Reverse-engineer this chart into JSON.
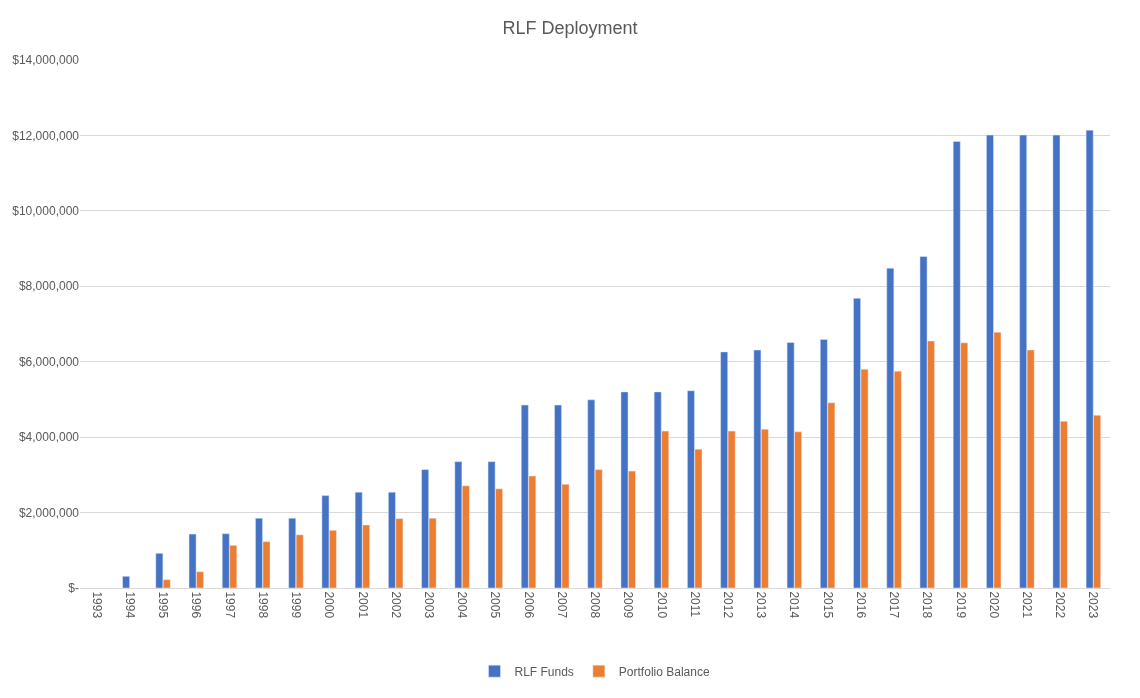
{
  "chart_data": {
    "type": "bar",
    "title": "RLF Deployment",
    "categories": [
      "1993",
      "1994",
      "1995",
      "1996",
      "1997",
      "1998",
      "1999",
      "2000",
      "2001",
      "2002",
      "2003",
      "2004",
      "2005",
      "2006",
      "2007",
      "2008",
      "2009",
      "2010",
      "2011",
      "2012",
      "2013",
      "2014",
      "2015",
      "2016",
      "2017",
      "2018",
      "2019",
      "2020",
      "2021",
      "2022",
      "2023"
    ],
    "series": [
      {
        "name": "RLF Funds",
        "color": "#4472c4",
        "values": [
          null,
          310000,
          920000,
          1430000,
          1440000,
          1850000,
          1850000,
          2450000,
          2540000,
          2540000,
          3140000,
          3350000,
          3350000,
          4850000,
          4850000,
          4990000,
          5200000,
          5200000,
          5230000,
          6260000,
          6310000,
          6510000,
          6590000,
          7680000,
          8480000,
          8790000,
          11840000,
          12010000,
          12010000,
          12010000,
          12140000
        ]
      },
      {
        "name": "Portfolio Balance",
        "color": "#ed7d31",
        "values": [
          null,
          null,
          220000,
          430000,
          1130000,
          1230000,
          1410000,
          1530000,
          1670000,
          1840000,
          1850000,
          2710000,
          2630000,
          2970000,
          2750000,
          3140000,
          3100000,
          4160000,
          3680000,
          4160000,
          4210000,
          4140000,
          4910000,
          5800000,
          5750000,
          6550000,
          6500000,
          6780000,
          6310000,
          4420000,
          4580000
        ]
      }
    ],
    "ylim": [
      0,
      14000000
    ],
    "yticks": [
      {
        "value": 0,
        "label": "$-"
      },
      {
        "value": 2000000,
        "label": "$2,000,000"
      },
      {
        "value": 4000000,
        "label": "$4,000,000"
      },
      {
        "value": 6000000,
        "label": "$6,000,000"
      },
      {
        "value": 8000000,
        "label": "$8,000,000"
      },
      {
        "value": 10000000,
        "label": "$10,000,000"
      },
      {
        "value": 12000000,
        "label": "$12,000,000"
      },
      {
        "value": 14000000,
        "label": "$14,000,000"
      }
    ],
    "grid": "y",
    "legend": "bottom"
  }
}
